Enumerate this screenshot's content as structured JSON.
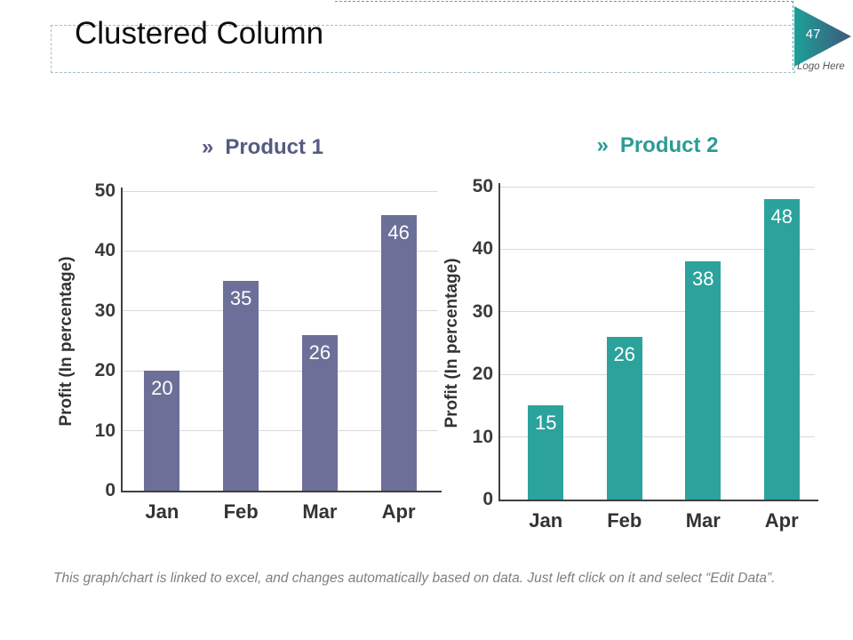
{
  "slide": {
    "title": "Clustered Column",
    "page_number": "47",
    "logo_label": "Logo Here",
    "footer_note": "This graph/chart is linked to excel, and changes automatically based on data. Just left click on it and select “Edit Data”.",
    "accent_slate": "#6C7098",
    "accent_teal": "#2BA39C",
    "triangle_gradient": [
      "#1DA09A",
      "#3F5878"
    ]
  },
  "chart_data": [
    {
      "type": "bar",
      "bullet": "»",
      "title": "Product 1",
      "categories": [
        "Jan",
        "Feb",
        "Mar",
        "Apr"
      ],
      "values": [
        20,
        35,
        26,
        46
      ],
      "ylabel": "Profit  (In percentage)",
      "xlabel": "",
      "ylim": [
        0,
        50
      ],
      "yticks": [
        0,
        10,
        20,
        30,
        40,
        50
      ],
      "grid": true,
      "legend": "none",
      "bar_color": "#6C7098",
      "title_color": "#555B82",
      "value_label_color": "#FFFFFF",
      "value_label_position": "inside-top"
    },
    {
      "type": "bar",
      "bullet": "»",
      "title": "Product 2",
      "categories": [
        "Jan",
        "Feb",
        "Mar",
        "Apr"
      ],
      "values": [
        15,
        26,
        38,
        48
      ],
      "ylabel": "Profit  (In percentage)",
      "xlabel": "",
      "ylim": [
        0,
        50
      ],
      "yticks": [
        0,
        10,
        20,
        30,
        40,
        50
      ],
      "grid": true,
      "legend": "none",
      "bar_color": "#2BA39C",
      "title_color": "#2C9C95",
      "value_label_color": "#FFFFFF",
      "value_label_position": "inside-top"
    }
  ]
}
